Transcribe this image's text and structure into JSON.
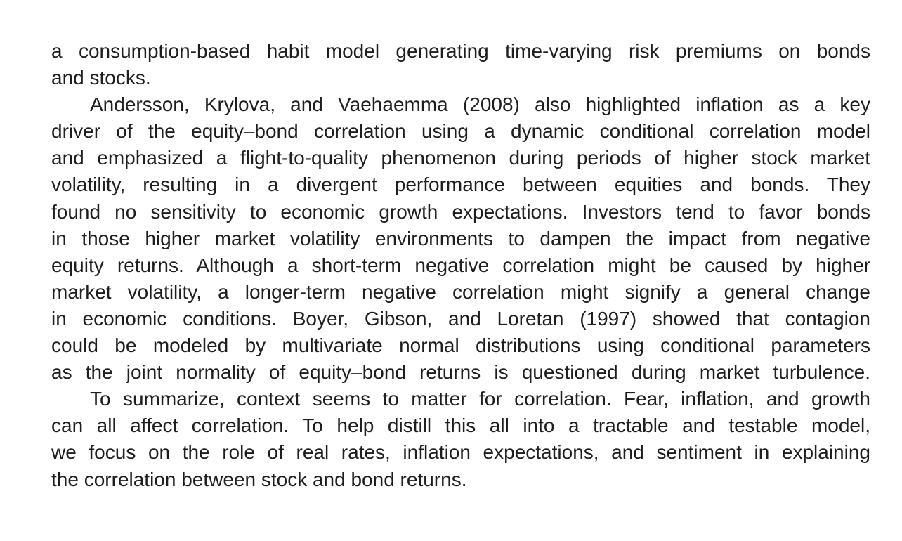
{
  "paragraphs": [
    {
      "indent": false,
      "lines": [
        "a consumption-based habit model generating time-varying risk premiums on bonds",
        "and stocks."
      ]
    },
    {
      "indent": true,
      "lines": [
        "Andersson, Krylova, and Vaehaemma (2008) also highlighted inflation as a key",
        "driver of the equity–bond correlation using a dynamic conditional correlation model",
        "and emphasized a flight-to-quality phenomenon during periods of higher stock market",
        "volatility, resulting in a divergent performance between equities and bonds. They",
        "found no sensitivity to economic growth expectations. Investors tend to favor bonds",
        "in those higher market volatility environments to dampen the impact from negative",
        "equity returns. Although a short-term negative correlation might be caused by higher",
        "market volatility, a longer-term negative correlation might signify a general change",
        "in economic conditions. Boyer, Gibson, and Loretan (1997) showed that contagion",
        "could be modeled by multivariate normal distributions using conditional parameters",
        "as the joint normality of equity–bond returns is questioned during market turbulence."
      ]
    },
    {
      "indent": true,
      "lines": [
        "To summarize, context seems to matter for correlation. Fear, inflation, and growth",
        "can all affect correlation. To help distill this all into a tractable and testable model,",
        "we focus on the role of real rates, inflation expectations, and sentiment in explaining",
        "the correlation between stock and bond returns."
      ]
    }
  ]
}
